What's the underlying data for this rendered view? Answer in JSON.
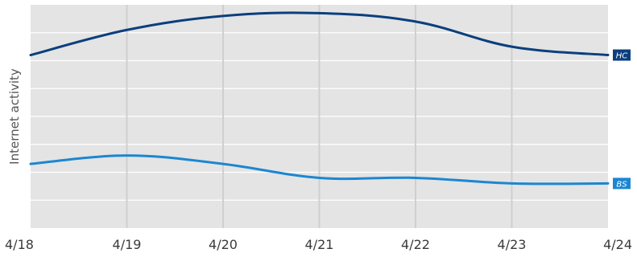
{
  "chart_data": {
    "type": "line",
    "title": "",
    "xlabel": "",
    "ylabel": "Internet activity",
    "x": [
      "4/18",
      "4/19",
      "4/20",
      "4/21",
      "4/22",
      "4/23",
      "4/24"
    ],
    "ylim": [
      0,
      8
    ],
    "grid": true,
    "series": [
      {
        "name": "HC",
        "color": "#0b3f7d",
        "values": [
          6.2,
          7.1,
          7.6,
          7.7,
          7.4,
          6.5,
          6.2
        ]
      },
      {
        "name": "BS",
        "color": "#1c86d1",
        "values": [
          2.3,
          2.6,
          2.3,
          1.8,
          1.8,
          1.6,
          1.6
        ]
      }
    ],
    "colors": {
      "plot_background": "#e4e4e4",
      "grid": "#ffffff",
      "vertical_grid": "#cfcfcf"
    }
  }
}
